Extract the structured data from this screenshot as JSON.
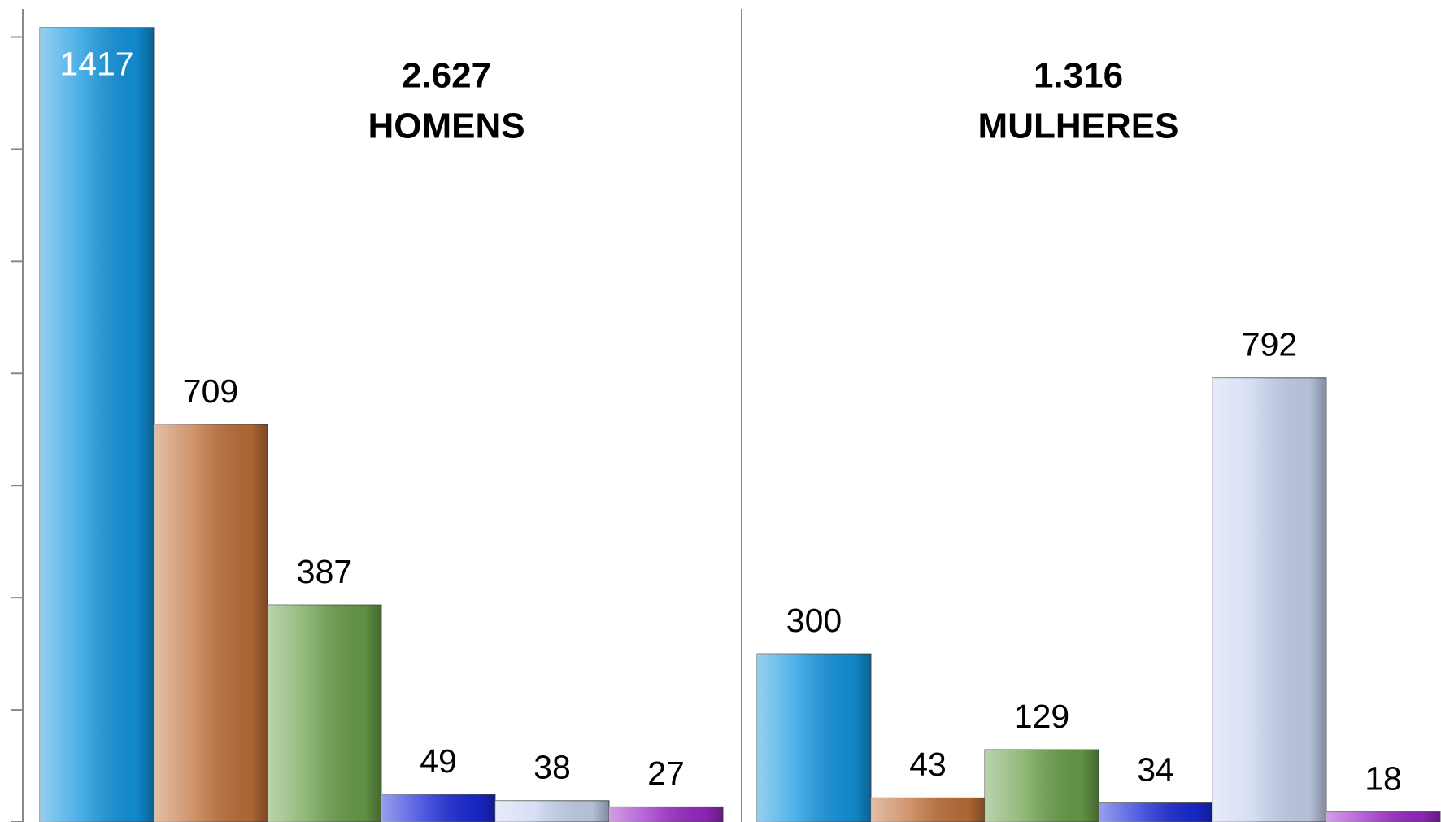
{
  "chart_data": [
    {
      "type": "bar",
      "title": "2.627",
      "subtitle": "HOMENS",
      "values": [
        1417,
        709,
        387,
        49,
        38,
        27
      ],
      "colors": [
        "#1296e0",
        "#c0703a",
        "#6aa04a",
        "#1a2ad8",
        "#c8d4f0",
        "#9a28c8"
      ],
      "ylim": [
        0,
        1450
      ],
      "yticks": [
        0,
        200,
        400,
        600,
        800,
        1000,
        1200,
        1400
      ]
    },
    {
      "type": "bar",
      "title": "1.316",
      "subtitle": "MULHERES",
      "values": [
        300,
        43,
        129,
        34,
        792,
        18
      ],
      "colors": [
        "#1296e0",
        "#c0703a",
        "#6aa04a",
        "#1a2ad8",
        "#c8d4f0",
        "#9a28c8"
      ],
      "ylim": [
        0,
        1450
      ],
      "yticks": [
        0,
        200,
        400,
        600,
        800,
        1000,
        1200,
        1400
      ]
    }
  ]
}
